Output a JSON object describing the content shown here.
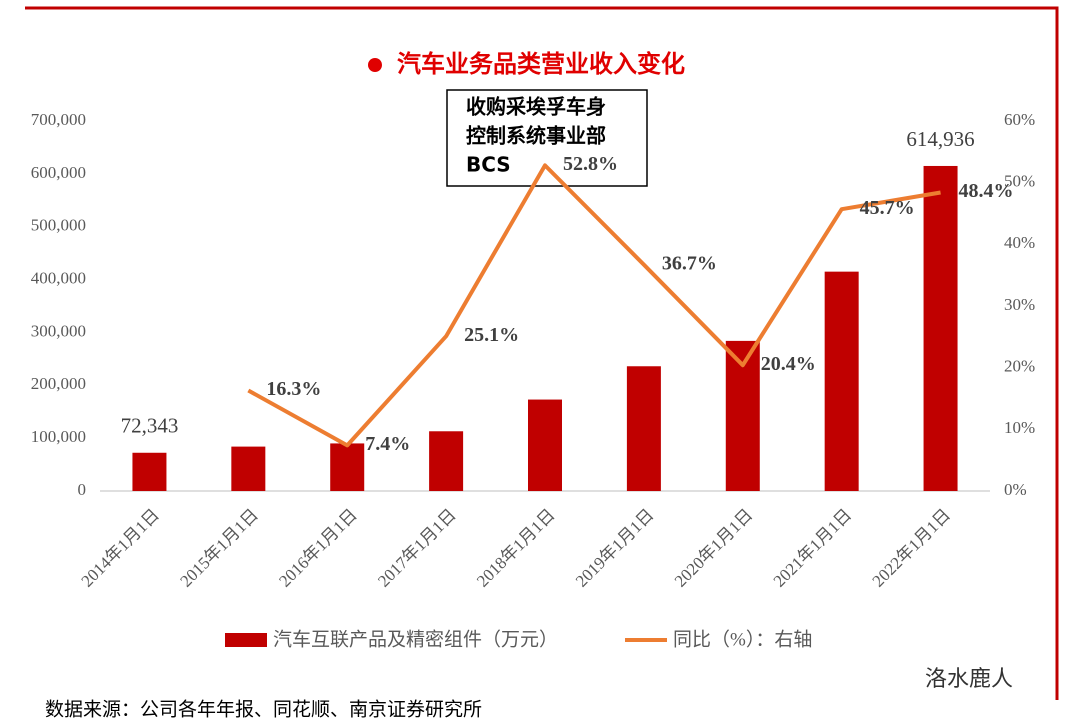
{
  "chart_data": {
    "type": "bar-line",
    "title": "汽车业务品类营业收入变化",
    "annotation": [
      "收购采埃孚车身",
      "控制系统事业部",
      "BCS"
    ],
    "source": "数据来源：公司各年年报、同花顺、南京证券研究所",
    "watermark": "洛水鹿人",
    "categories": [
      "2014年1月1日",
      "2015年1月1日",
      "2016年1月1日",
      "2017年1月1日",
      "2018年1月1日",
      "2019年1月1日",
      "2020年1月1日",
      "2021年1月1日",
      "2022年1月1日"
    ],
    "series": [
      {
        "name": "汽车互联产品及精密组件（万元）",
        "type": "bar",
        "color": "#C00000",
        "values": [
          72343,
          84000,
          90000,
          113000,
          173000,
          236000,
          284000,
          415000,
          614936
        ],
        "value_labels": [
          "72,343",
          null,
          null,
          null,
          null,
          null,
          null,
          null,
          "614,936"
        ]
      },
      {
        "name": "同比（%）：右轴",
        "type": "line",
        "axis": "y2",
        "color": "#ED7D31",
        "values": [
          null,
          16.3,
          7.4,
          25.1,
          52.8,
          36.7,
          20.4,
          45.7,
          48.4
        ],
        "value_labels": [
          null,
          "16.3%",
          "7.4%",
          "25.1%",
          "52.8%",
          "36.7%",
          "20.4%",
          "45.7%",
          "48.4%"
        ]
      }
    ],
    "ylim": [
      0,
      700000
    ],
    "yticks": [
      0,
      {
        "value": 100000,
        "label": "100,000"
      },
      {
        "value": 200000,
        "label": "200,000"
      },
      {
        "value": 300000,
        "label": "300,000"
      },
      {
        "value": 400000,
        "label": "400,000"
      },
      {
        "value": 500000,
        "label": "500,000"
      },
      {
        "value": 600000,
        "label": "600,000"
      },
      {
        "value": 700000,
        "label": "700,000"
      }
    ],
    "y2lim": [
      0,
      60
    ],
    "y2ticks": [
      {
        "value": 0,
        "label": "0%"
      },
      {
        "value": 10,
        "label": "10%"
      },
      {
        "value": 20,
        "label": "20%"
      },
      {
        "value": 30,
        "label": "30%"
      },
      {
        "value": 40,
        "label": "40%"
      },
      {
        "value": 50,
        "label": "50%"
      },
      {
        "value": 60,
        "label": "60%"
      }
    ],
    "grid": false,
    "legend": "bottom"
  }
}
